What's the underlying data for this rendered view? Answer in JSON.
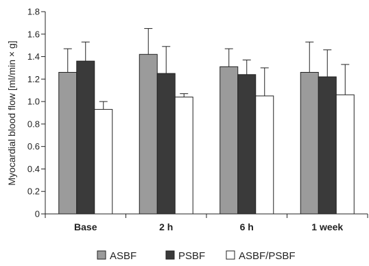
{
  "chart_data": {
    "type": "bar",
    "title": "",
    "xlabel": "",
    "ylabel": "Myocardial blood flow [ml/min × g]",
    "categories": [
      "Base",
      "2 h",
      "6 h",
      "1 week"
    ],
    "ylim": [
      0,
      1.8
    ],
    "yticks": [
      "0",
      "0.2",
      "0.4",
      "0.6",
      "0.8",
      "1.0",
      "1.2",
      "1.4",
      "1.6",
      "1.8"
    ],
    "grid": false,
    "legend_position": "bottom",
    "series": [
      {
        "name": "ASBF",
        "color": "#9b9b9b",
        "values": [
          1.26,
          1.42,
          1.31,
          1.26
        ],
        "error": [
          0.21,
          0.23,
          0.16,
          0.27
        ]
      },
      {
        "name": "PSBF",
        "color": "#3a3a3a",
        "values": [
          1.36,
          1.25,
          1.24,
          1.22
        ],
        "error": [
          0.17,
          0.24,
          0.13,
          0.24
        ]
      },
      {
        "name": "ASBF/PSBF",
        "color": "#ffffff",
        "values": [
          0.93,
          1.04,
          1.05,
          1.06
        ],
        "error": [
          0.07,
          0.03,
          0.25,
          0.27
        ]
      }
    ]
  }
}
